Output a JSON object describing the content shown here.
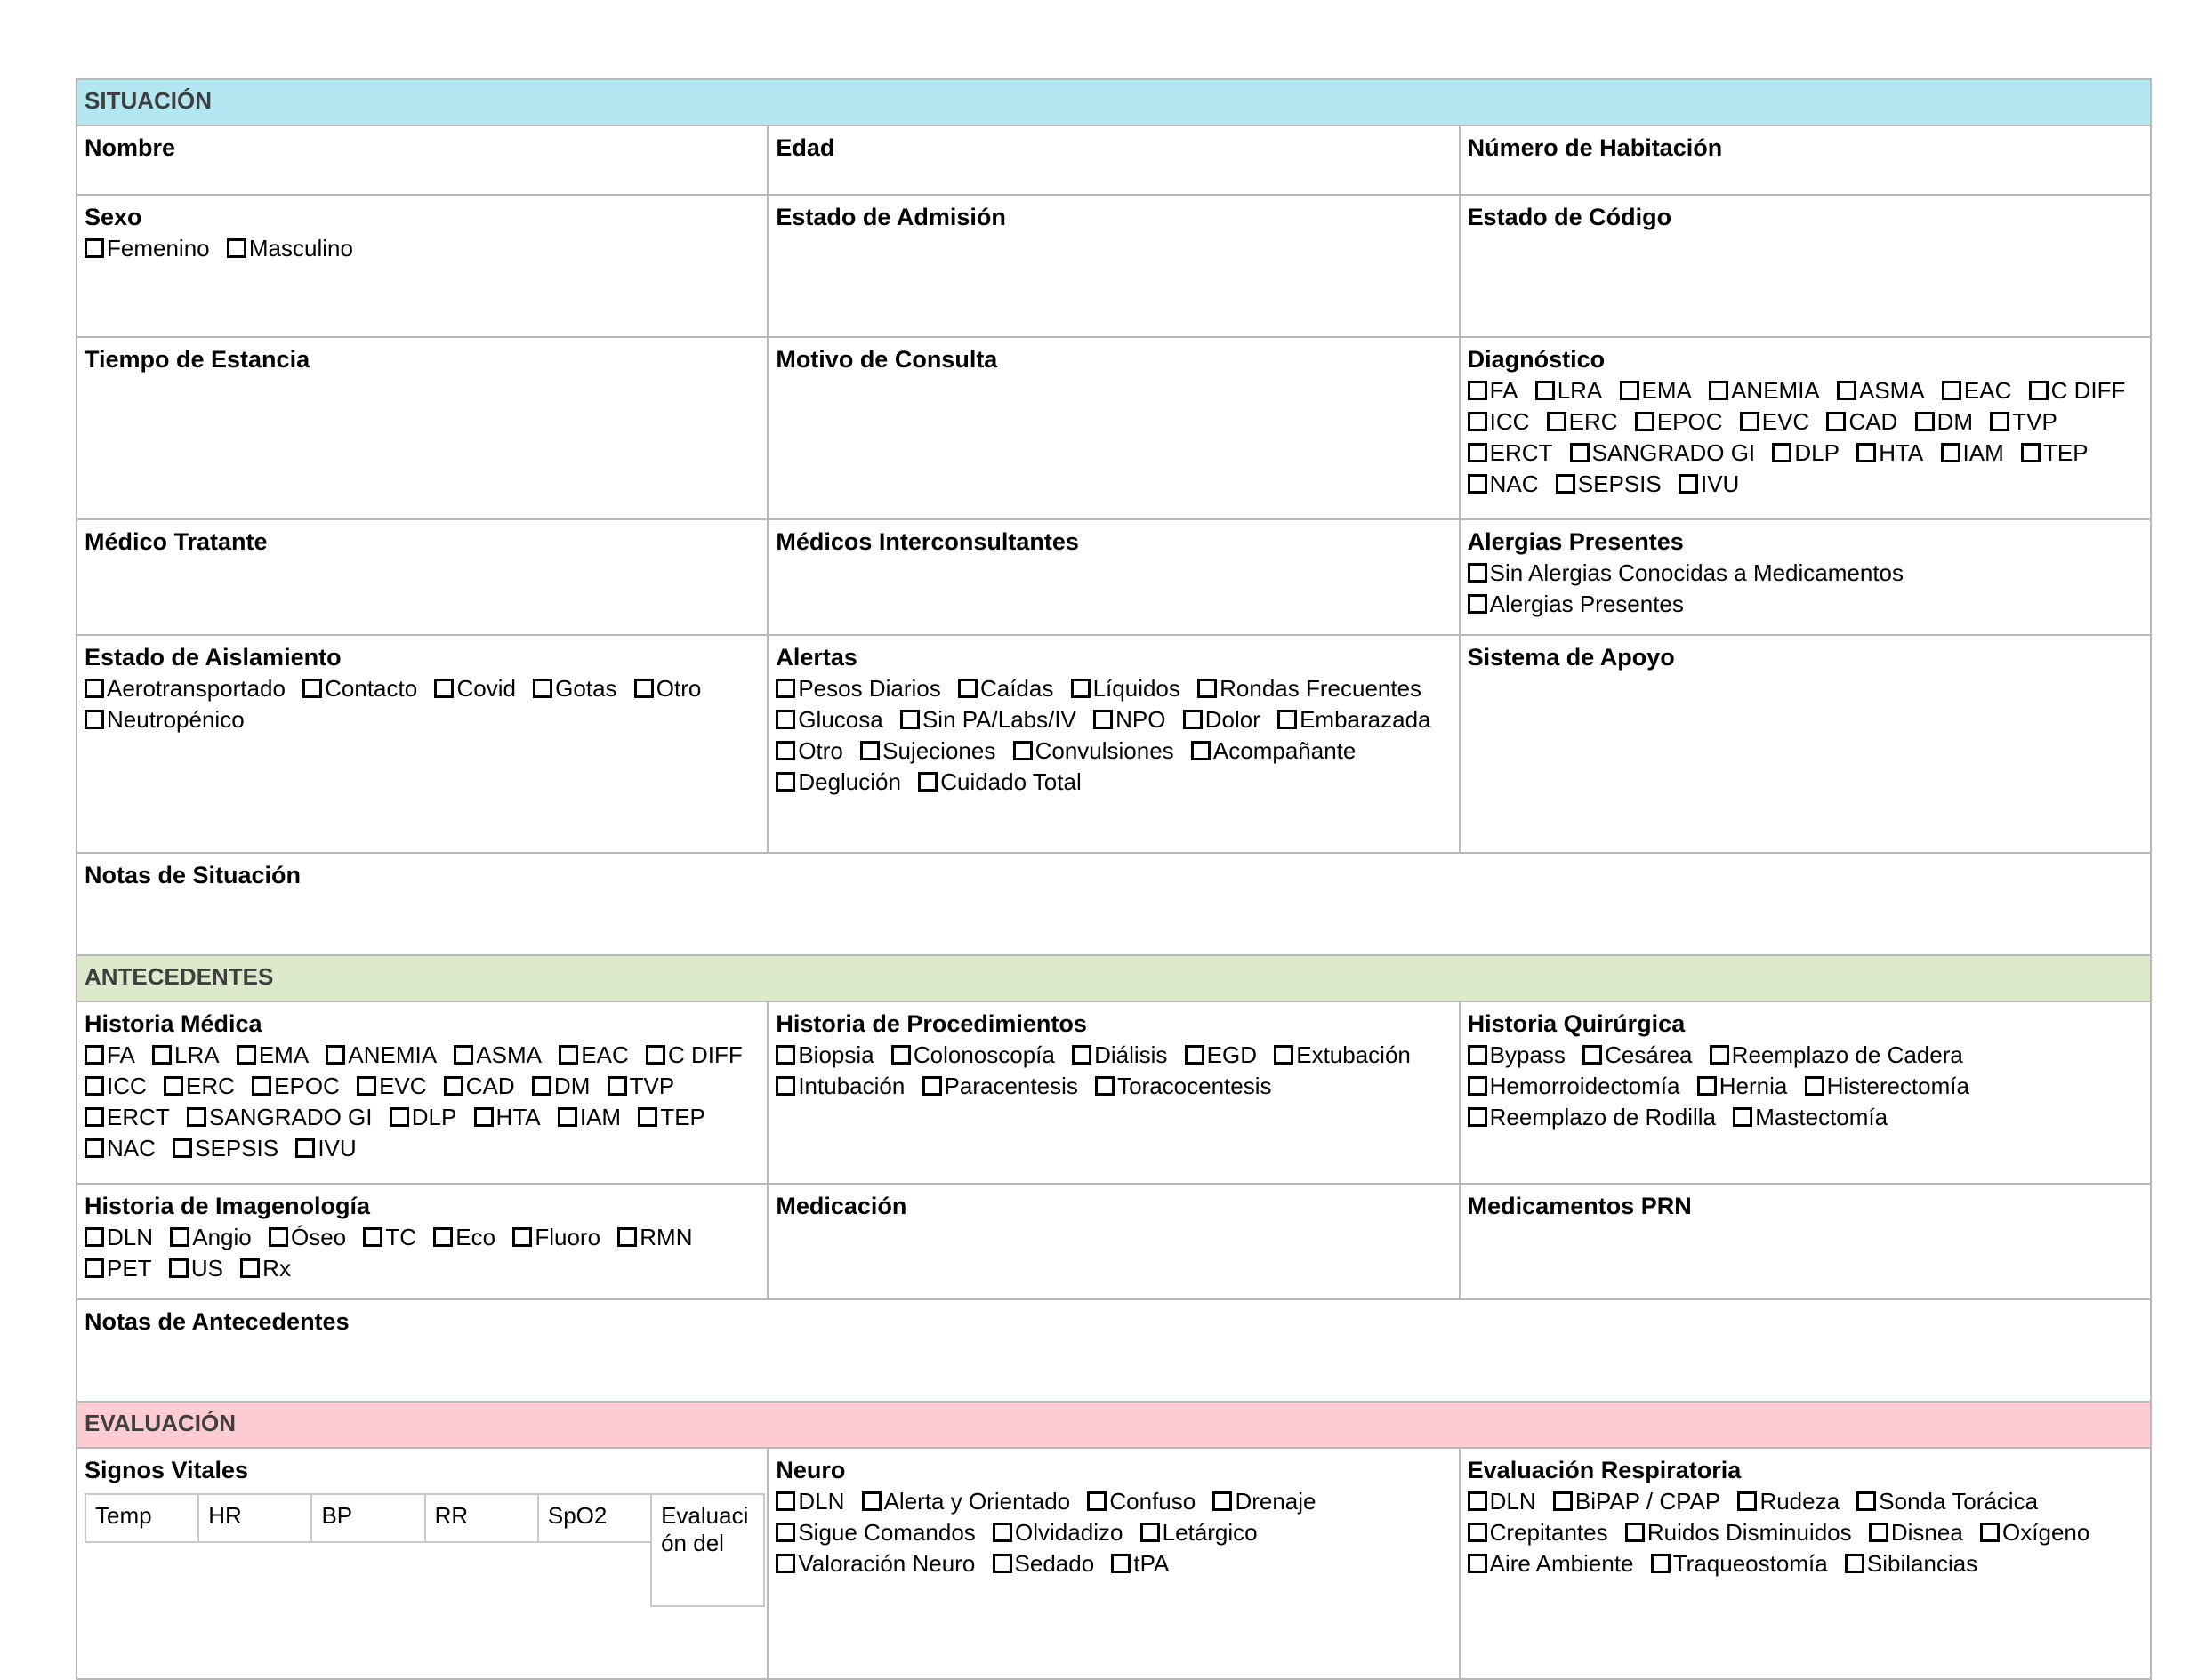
{
  "colors": {
    "situacion_bg": "#b2e6f0",
    "antecedentes_bg": "#dce9cb",
    "evaluacion_bg": "#fcccd2",
    "section_text": "#3e3e3e",
    "grid_border": "#b9b9b9"
  },
  "situacion": {
    "title": "SITUACIÓN",
    "nombre": {
      "label": "Nombre"
    },
    "edad": {
      "label": "Edad"
    },
    "habitacion": {
      "label": "Número de Habitación"
    },
    "sexo": {
      "label": "Sexo",
      "options": [
        "Femenino",
        "Masculino"
      ]
    },
    "admision": {
      "label": "Estado de Admisión"
    },
    "codigo": {
      "label": "Estado de Código"
    },
    "estancia": {
      "label": "Tiempo de Estancia"
    },
    "consulta": {
      "label": "Motivo de Consulta"
    },
    "diagnostico": {
      "label": "Diagnóstico",
      "options": [
        "FA",
        "LRA",
        "EMA",
        "ANEMIA",
        "ASMA",
        "EAC",
        "C DIFF",
        "ICC",
        "ERC",
        "EPOC",
        "EVC",
        "CAD",
        "DM",
        "TVP",
        "ERCT",
        "SANGRADO GI",
        "DLP",
        "HTA",
        "IAM",
        "TEP",
        "NAC",
        "SEPSIS",
        "IVU"
      ]
    },
    "medico_tratante": {
      "label": "Médico Tratante"
    },
    "interconsultantes": {
      "label": "Médicos Interconsultantes"
    },
    "alergias": {
      "label": "Alergias Presentes",
      "options": [
        "Sin Alergias Conocidas a Medicamentos",
        "Alergias Presentes"
      ]
    },
    "aislamiento": {
      "label": "Estado de Aislamiento",
      "options": [
        "Aerotransportado",
        "Contacto",
        "Covid",
        "Gotas",
        "Otro",
        "Neutropénico"
      ]
    },
    "alertas": {
      "label": "Alertas",
      "options": [
        "Pesos Diarios",
        "Caídas",
        "Líquidos",
        "Rondas Frecuentes",
        "Glucosa",
        "Sin PA/Labs/IV",
        "NPO",
        "Dolor",
        "Embarazada",
        "Otro",
        "Sujeciones",
        "Convulsiones",
        "Acompañante",
        "Deglución",
        "Cuidado Total"
      ]
    },
    "apoyo": {
      "label": "Sistema de Apoyo"
    },
    "notas": {
      "label": "Notas de Situación"
    }
  },
  "antecedentes": {
    "title": "ANTECEDENTES",
    "historia_medica": {
      "label": "Historia Médica",
      "options": [
        "FA",
        "LRA",
        "EMA",
        "ANEMIA",
        "ASMA",
        "EAC",
        "C DIFF",
        "ICC",
        "ERC",
        "EPOC",
        "EVC",
        "CAD",
        "DM",
        "TVP",
        "ERCT",
        "SANGRADO GI",
        "DLP",
        "HTA",
        "IAM",
        "TEP",
        "NAC",
        "SEPSIS",
        "IVU"
      ]
    },
    "procedimientos": {
      "label": "Historia de Procedimientos",
      "options": [
        "Biopsia",
        "Colonoscopía",
        "Diálisis",
        "EGD",
        "Extubación",
        "Intubación",
        "Paracentesis",
        "Toracocentesis"
      ]
    },
    "quirurgica": {
      "label": "Historia Quirúrgica",
      "options": [
        "Bypass",
        "Cesárea",
        "Reemplazo de Cadera",
        "Hemorroidectomía",
        "Hernia",
        "Histerectomía",
        "Reemplazo de Rodilla",
        "Mastectomía"
      ]
    },
    "imagenologia": {
      "label": "Historia de Imagenología",
      "options": [
        "DLN",
        "Angio",
        "Óseo",
        "TC",
        "Eco",
        "Fluoro",
        "RMN",
        "PET",
        "US",
        "Rx"
      ]
    },
    "medicacion": {
      "label": "Medicación"
    },
    "prn": {
      "label": "Medicamentos PRN"
    },
    "notas": {
      "label": "Notas de Antecedentes"
    }
  },
  "evaluacion": {
    "title": "EVALUACIÓN",
    "vitales": {
      "label": "Signos Vitales",
      "columns": [
        "Temp",
        "HR",
        "BP",
        "RR",
        "SpO2",
        "Evaluación del"
      ]
    },
    "neuro": {
      "label": "Neuro",
      "options": [
        "DLN",
        "Alerta y Orientado",
        "Confuso",
        "Drenaje",
        "Sigue Comandos",
        "Olvidadizo",
        "Letárgico",
        "Valoración Neuro",
        "Sedado",
        "tPA"
      ]
    },
    "respiratoria": {
      "label": "Evaluación Respiratoria",
      "options": [
        "DLN",
        "BiPAP / CPAP",
        "Rudeza",
        "Sonda Torácica",
        "Crepitantes",
        "Ruidos Disminuidos",
        "Disnea",
        "Oxígeno",
        "Aire Ambiente",
        "Traqueostomía",
        "Sibilancias"
      ]
    }
  }
}
